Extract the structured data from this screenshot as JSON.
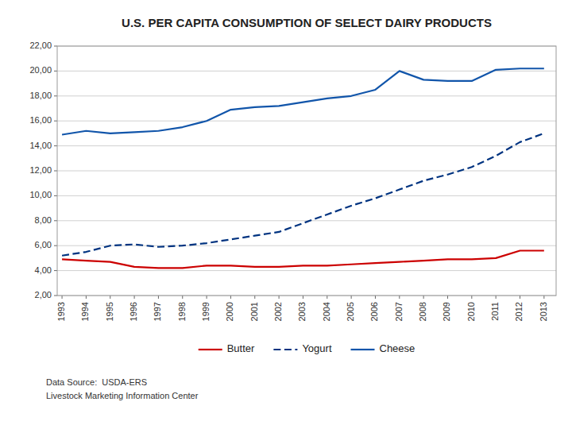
{
  "chart_data": {
    "type": "line",
    "title": "U.S. PER CAPITA CONSUMPTION OF SELECT DAIRY PRODUCTS",
    "x": [
      1993,
      1994,
      1995,
      1996,
      1997,
      1998,
      1999,
      2000,
      2001,
      2002,
      2003,
      2004,
      2005,
      2006,
      2007,
      2008,
      2009,
      2010,
      2011,
      2012,
      2013
    ],
    "series": [
      {
        "name": "Cheese",
        "color": "#1155aa",
        "line_style": "solid",
        "values": [
          14.9,
          15.2,
          15.0,
          15.1,
          15.2,
          15.5,
          16.0,
          16.9,
          17.1,
          17.2,
          17.5,
          17.8,
          18.0,
          18.5,
          20.0,
          19.3,
          19.2,
          19.2,
          20.1,
          20.2,
          20.2
        ]
      },
      {
        "name": "Yogurt",
        "color": "#003380",
        "line_style": "dashed",
        "values": [
          5.2,
          5.5,
          6.0,
          6.1,
          5.9,
          6.0,
          6.2,
          6.5,
          6.8,
          7.1,
          7.8,
          8.5,
          9.2,
          9.8,
          10.5,
          11.2,
          11.7,
          12.3,
          13.2,
          14.3,
          15.0
        ]
      },
      {
        "name": "Butter",
        "color": "#cc0000",
        "line_style": "solid",
        "values": [
          4.9,
          4.8,
          4.7,
          4.3,
          4.2,
          4.2,
          4.4,
          4.4,
          4.3,
          4.3,
          4.4,
          4.4,
          4.5,
          4.6,
          4.7,
          4.8,
          4.9,
          4.9,
          5.0,
          5.6,
          5.6
        ]
      }
    ],
    "xlim": [
      1992.8,
      2013.5
    ],
    "xticks": [
      1993,
      1994,
      1995,
      1996,
      1997,
      1998,
      1999,
      2000,
      2001,
      2002,
      2003,
      2004,
      2005,
      2006,
      2007,
      2008,
      2009,
      2010,
      2011,
      2012,
      2013
    ],
    "ylim": [
      2.0,
      22.0
    ],
    "yticks": [
      {
        "value": 2.0,
        "label": "2,00"
      },
      {
        "value": 4.0,
        "label": "4,00"
      },
      {
        "value": 6.0,
        "label": "6,00"
      },
      {
        "value": 8.0,
        "label": "8,00"
      },
      {
        "value": 10.0,
        "label": "10,00"
      },
      {
        "value": 12.0,
        "label": "12,00"
      },
      {
        "value": 14.0,
        "label": "14,00"
      },
      {
        "value": 16.0,
        "label": "16,00"
      },
      {
        "value": 18.0,
        "label": "18,00"
      },
      {
        "value": 20.0,
        "label": "20,00"
      },
      {
        "value": 22.0,
        "label": "22,00"
      }
    ],
    "grid": true,
    "legend": "bottom",
    "annotations": [
      "Data Source:  USDA-ERS",
      "Livestock Marketing Information Center"
    ]
  }
}
